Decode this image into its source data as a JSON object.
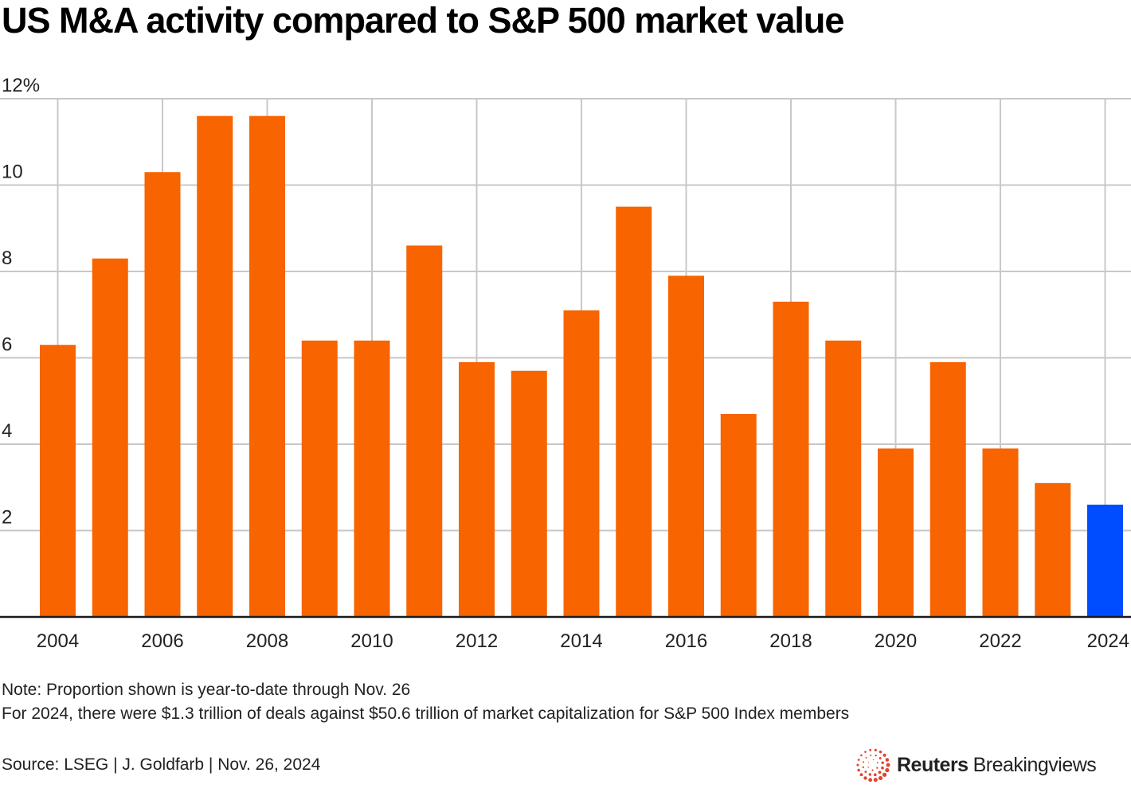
{
  "chart_data": {
    "type": "bar",
    "title": "US M&A activity compared to S&P 500 market value",
    "xlabel": "",
    "ylabel": "",
    "ylim": [
      0,
      12
    ],
    "yticks": [
      {
        "value": 2,
        "label": "2"
      },
      {
        "value": 4,
        "label": "4"
      },
      {
        "value": 6,
        "label": "6"
      },
      {
        "value": 8,
        "label": "8"
      },
      {
        "value": 10,
        "label": "10"
      },
      {
        "value": 12,
        "label": "12%"
      }
    ],
    "categories": [
      "2004",
      "2005",
      "2006",
      "2007",
      "2008",
      "2009",
      "2010",
      "2011",
      "2012",
      "2013",
      "2014",
      "2015",
      "2016",
      "2017",
      "2018",
      "2019",
      "2020",
      "2021",
      "2022",
      "2023",
      "2024"
    ],
    "values": [
      6.3,
      8.3,
      10.3,
      11.6,
      11.6,
      6.4,
      6.4,
      8.6,
      5.9,
      5.7,
      7.1,
      9.5,
      7.9,
      4.7,
      7.3,
      6.4,
      3.9,
      5.9,
      3.9,
      3.1,
      2.6
    ],
    "xtick_labels": [
      "2004",
      "2006",
      "2008",
      "2010",
      "2012",
      "2014",
      "2016",
      "2018",
      "2020",
      "2022",
      "2024"
    ],
    "highlight_category": "2024",
    "grid": true,
    "colors": {
      "bar": "#f76400",
      "highlight": "#004dff",
      "grid": "#c8c8c8",
      "axis": "#1a1a1a"
    }
  },
  "notes": [
    "Note: Proportion shown is year-to-date through Nov. 26",
    "For 2024, there were $1.3 trillion of deals against $50.6 trillion of market capitalization for S&P 500 Index members"
  ],
  "source": "Source: LSEG | J. Goldfarb | Nov. 26, 2024",
  "logo": {
    "icon": "reuters-dot-ring-icon",
    "brand_bold": "Reuters",
    "brand_light": "Breakingviews",
    "color": "#e5432b"
  }
}
